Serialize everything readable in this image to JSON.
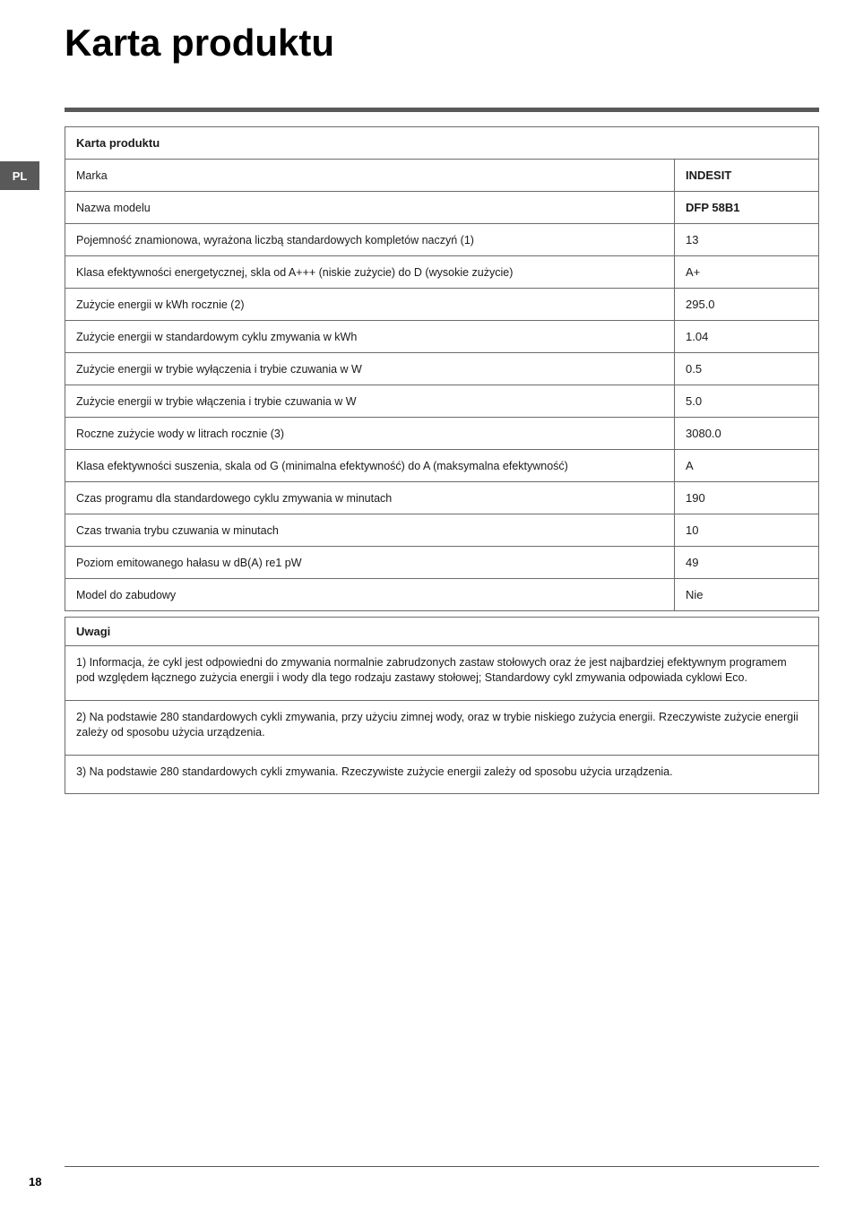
{
  "page": {
    "title": "Karta produktu",
    "lang_tab": "PL",
    "page_number": "18"
  },
  "table": {
    "header": "Karta produktu",
    "rows": [
      {
        "label": "Marka",
        "value": "INDESIT",
        "bold": true
      },
      {
        "label": "Nazwa modelu",
        "value": "DFP 58B1",
        "bold": true
      },
      {
        "label": "Pojemność znamionowa, wyrażona liczbą standardowych kompletów naczyń (1)",
        "value": "13",
        "bold": false
      },
      {
        "label": "Klasa efektywności energetycznej, skla od A+++ (niskie zużycie) do D (wysokie zużycie)",
        "value": "A+",
        "bold": false
      },
      {
        "label": "Zużycie energii w kWh rocznie (2)",
        "value": "295.0",
        "bold": false
      },
      {
        "label": "Zużycie energii w standardowym cyklu zmywania w kWh",
        "value": "1.04",
        "bold": false
      },
      {
        "label": "Zużycie energii w trybie wyłączenia i trybie czuwania w W",
        "value": "0.5",
        "bold": false
      },
      {
        "label": "Zużycie energii w trybie włączenia i trybie czuwania w W",
        "value": "5.0",
        "bold": false
      },
      {
        "label": "Roczne zużycie wody w litrach rocznie (3)",
        "value": "3080.0",
        "bold": false
      },
      {
        "label": "Klasa efektywności suszenia, skala od G (minimalna efektywność) do A (maksymalna efektywność)",
        "value": "A",
        "bold": false
      },
      {
        "label": "Czas programu dla standardowego cyklu zmywania w minutach",
        "value": "190",
        "bold": false
      },
      {
        "label": "Czas trwania trybu czuwania w minutach",
        "value": "10",
        "bold": false
      },
      {
        "label": "Poziom emitowanego hałasu w dB(A) re1 pW",
        "value": "49",
        "bold": false
      },
      {
        "label": "Model do zabudowy",
        "value": "Nie",
        "bold": false
      }
    ]
  },
  "notes": {
    "header": "Uwagi",
    "items": [
      "1) Informacja, że cykl jest odpowiedni do zmywania normalnie zabrudzonych zastaw stołowych oraz że jest najbardziej efektywnym programem pod względem łącznego zużycia energii i wody dla tego rodzaju zastawy stołowej; Standardowy cykl zmywania odpowiada cyklowi Eco.",
      "2) Na podstawie 280 standardowych cykli zmywania, przy użyciu zimnej wody, oraz w trybie niskiego zużycia energii. Rzeczywiste zużycie energii zależy od sposobu użycia urządzenia.",
      "3) Na podstawie 280 standardowych cykli zmywania. Rzeczywiste zużycie energii zależy od sposobu użycia urządzenia."
    ]
  },
  "colors": {
    "bar": "#595959",
    "border": "#6b6b6b",
    "text": "#1a1a1a",
    "bg": "#ffffff"
  }
}
